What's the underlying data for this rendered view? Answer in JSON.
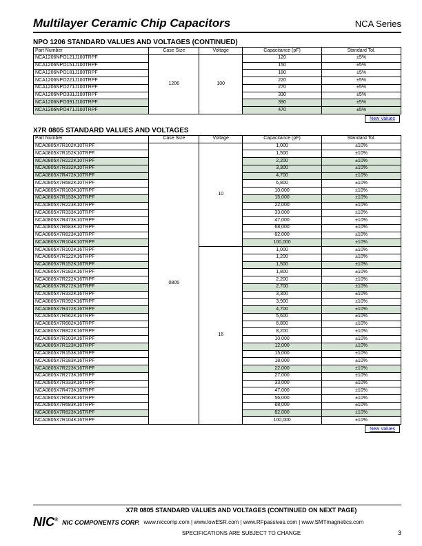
{
  "header": {
    "title": "Multilayer Ceramic Chip Capacitors",
    "series": "NCA Series"
  },
  "section1": {
    "title": "NPO 1206 STANDARD VALUES AND VOLTAGES (CONTINUED)",
    "columns": [
      "Part Number",
      "Case Size",
      "Voltage",
      "Capacitance (pF)",
      "Standard Tol."
    ],
    "case_size": "1206",
    "voltage": "100",
    "rows": [
      {
        "pn": "NCA1206NPO121J100TRPF",
        "cap": "120",
        "tol": "±5%"
      },
      {
        "pn": "NCA1206NPO151J100TRPF",
        "cap": "150",
        "tol": "±5%"
      },
      {
        "pn": "NCA1206NPO181J100TRPF",
        "cap": "180",
        "tol": "±5%"
      },
      {
        "pn": "NCA1206NPO221J100TRPF",
        "cap": "220",
        "tol": "±5%"
      },
      {
        "pn": "NCA1206NPO271J100TRPF",
        "cap": "270",
        "tol": "±5%"
      },
      {
        "pn": "NCA1206NPO331J100TRPF",
        "cap": "330",
        "tol": "±5%"
      },
      {
        "pn": "NCA1206NPO391J100TRPF",
        "cap": "390",
        "tol": "±5%",
        "shaded": true
      },
      {
        "pn": "NCA1206NPO471J100TRPF",
        "cap": "470",
        "tol": "±5%",
        "shaded": true
      }
    ],
    "new_values": "New Values"
  },
  "section2": {
    "title": "X7R 0805 STANDARD VALUES AND VOLTAGES",
    "columns": [
      "Part Number",
      "Case Size",
      "Voltage",
      "Capacitance (pF)",
      "Standard Tol."
    ],
    "case_size": "0805",
    "group1": {
      "voltage": "10",
      "rows": [
        {
          "pn": "NCA0805X7R102K10TRPF",
          "cap": "1,000",
          "tol": "±10%"
        },
        {
          "pn": "NCA0805X7R152K10TRPF",
          "cap": "1,500",
          "tol": "±10%"
        },
        {
          "pn": "NCA0805X7R222K10TRPF",
          "cap": "2,200",
          "tol": "±10%",
          "shaded": true
        },
        {
          "pn": "NCA0805X7R332K10TRPF",
          "cap": "3,300",
          "tol": "±10%",
          "shaded": true
        },
        {
          "pn": "NCA0805X7R472K10TRPF",
          "cap": "4,700",
          "tol": "±10%",
          "shaded": true
        },
        {
          "pn": "NCA0805X7R682K10TRPF",
          "cap": "6,800",
          "tol": "±10%"
        },
        {
          "pn": "NCA0805X7R103K10TRPF",
          "cap": "10,000",
          "tol": "±10%"
        },
        {
          "pn": "NCA0805X7R153K10TRPF",
          "cap": "15,000",
          "tol": "±10%",
          "shaded": true
        },
        {
          "pn": "NCA0805X7R223K10TRPF",
          "cap": "22,000",
          "tol": "±10%"
        },
        {
          "pn": "NCA0805X7R333K10TRPF",
          "cap": "33,000",
          "tol": "±10%"
        },
        {
          "pn": "NCA0805X7R473K10TRPF",
          "cap": "47,000",
          "tol": "±10%"
        },
        {
          "pn": "NCA0805X7R683K10TRPF",
          "cap": "68,000",
          "tol": "±10%"
        },
        {
          "pn": "NCA0805X7R823K10TRPF",
          "cap": "82,000",
          "tol": "±10%"
        },
        {
          "pn": "NCA0805X7R104K10TRPF",
          "cap": "100,000",
          "tol": "±10%",
          "shaded": true
        }
      ]
    },
    "group2": {
      "voltage": "16",
      "rows": [
        {
          "pn": "NCA0805X7R102K16TRPF",
          "cap": "1,000",
          "tol": "±10%"
        },
        {
          "pn": "NCA0805X7R122K16TRPF",
          "cap": "1,200",
          "tol": "±10%"
        },
        {
          "pn": "NCA0805X7R152K16TRPF",
          "cap": "1,500",
          "tol": "±10%",
          "shaded": true
        },
        {
          "pn": "NCA0805X7R182K16TRPF",
          "cap": "1,800",
          "tol": "±10%"
        },
        {
          "pn": "NCA0805X7R222K16TRPF",
          "cap": "2,200",
          "tol": "±10%"
        },
        {
          "pn": "NCA0805X7R272K16TRPF",
          "cap": "2,700",
          "tol": "±10%",
          "shaded": true
        },
        {
          "pn": "NCA0805X7R332K16TRPF",
          "cap": "3,300",
          "tol": "±10%"
        },
        {
          "pn": "NCA0805X7R392K16TRPF",
          "cap": "3,900",
          "tol": "±10%"
        },
        {
          "pn": "NCA0805X7R472K16TRPF",
          "cap": "4,700",
          "tol": "±10%",
          "shaded": true
        },
        {
          "pn": "NCA0805X7R562K16TRPF",
          "cap": "5,600",
          "tol": "±10%"
        },
        {
          "pn": "NCA0805X7R682K16TRPF",
          "cap": "6,800",
          "tol": "±10%"
        },
        {
          "pn": "NCA0805X7R822K16TRPF",
          "cap": "8,200",
          "tol": "±10%"
        },
        {
          "pn": "NCA0805X7R103K16TRPF",
          "cap": "10,000",
          "tol": "±10%"
        },
        {
          "pn": "NCA0805X7R123K16TRPF",
          "cap": "12,000",
          "tol": "±10%",
          "shaded": true
        },
        {
          "pn": "NCA0805X7R153K16TRPF",
          "cap": "15,000",
          "tol": "±10%"
        },
        {
          "pn": "NCA0805X7R183K16TRPF",
          "cap": "18,000",
          "tol": "±10%"
        },
        {
          "pn": "NCA0805X7R223K16TRPF",
          "cap": "22,000",
          "tol": "±10%",
          "shaded": true
        },
        {
          "pn": "NCA0805X7R273K16TRPF",
          "cap": "27,000",
          "tol": "±10%"
        },
        {
          "pn": "NCA0805X7R333K16TRPF",
          "cap": "33,000",
          "tol": "±10%"
        },
        {
          "pn": "NCA0805X7R473K16TRPF",
          "cap": "47,000",
          "tol": "±10%"
        },
        {
          "pn": "NCA0805X7R563K16TRPF",
          "cap": "56,000",
          "tol": "±10%"
        },
        {
          "pn": "NCA0805X7R683K16TRPF",
          "cap": "68,000",
          "tol": "±10%"
        },
        {
          "pn": "NCA0805X7R823K16TRPF",
          "cap": "82,000",
          "tol": "±10%",
          "shaded": true
        },
        {
          "pn": "NCA0805X7R104K16TRPF",
          "cap": "100,000",
          "tol": "±10%"
        }
      ]
    },
    "new_values": "New Values"
  },
  "footer": {
    "continued": "X7R 0805 STANDARD VALUES AND VOLTAGES (CONTINUED ON NEXT PAGE)",
    "logo": "NIC",
    "corp": "NIC COMPONENTS CORP.",
    "links": "www.niccomp.com   |   www.lowESR.com   |   www.RFpassives.com   |   www.SMTmagnetics.com",
    "spec": "SPECIFICATIONS ARE SUBJECT TO CHANGE",
    "page": "3"
  }
}
